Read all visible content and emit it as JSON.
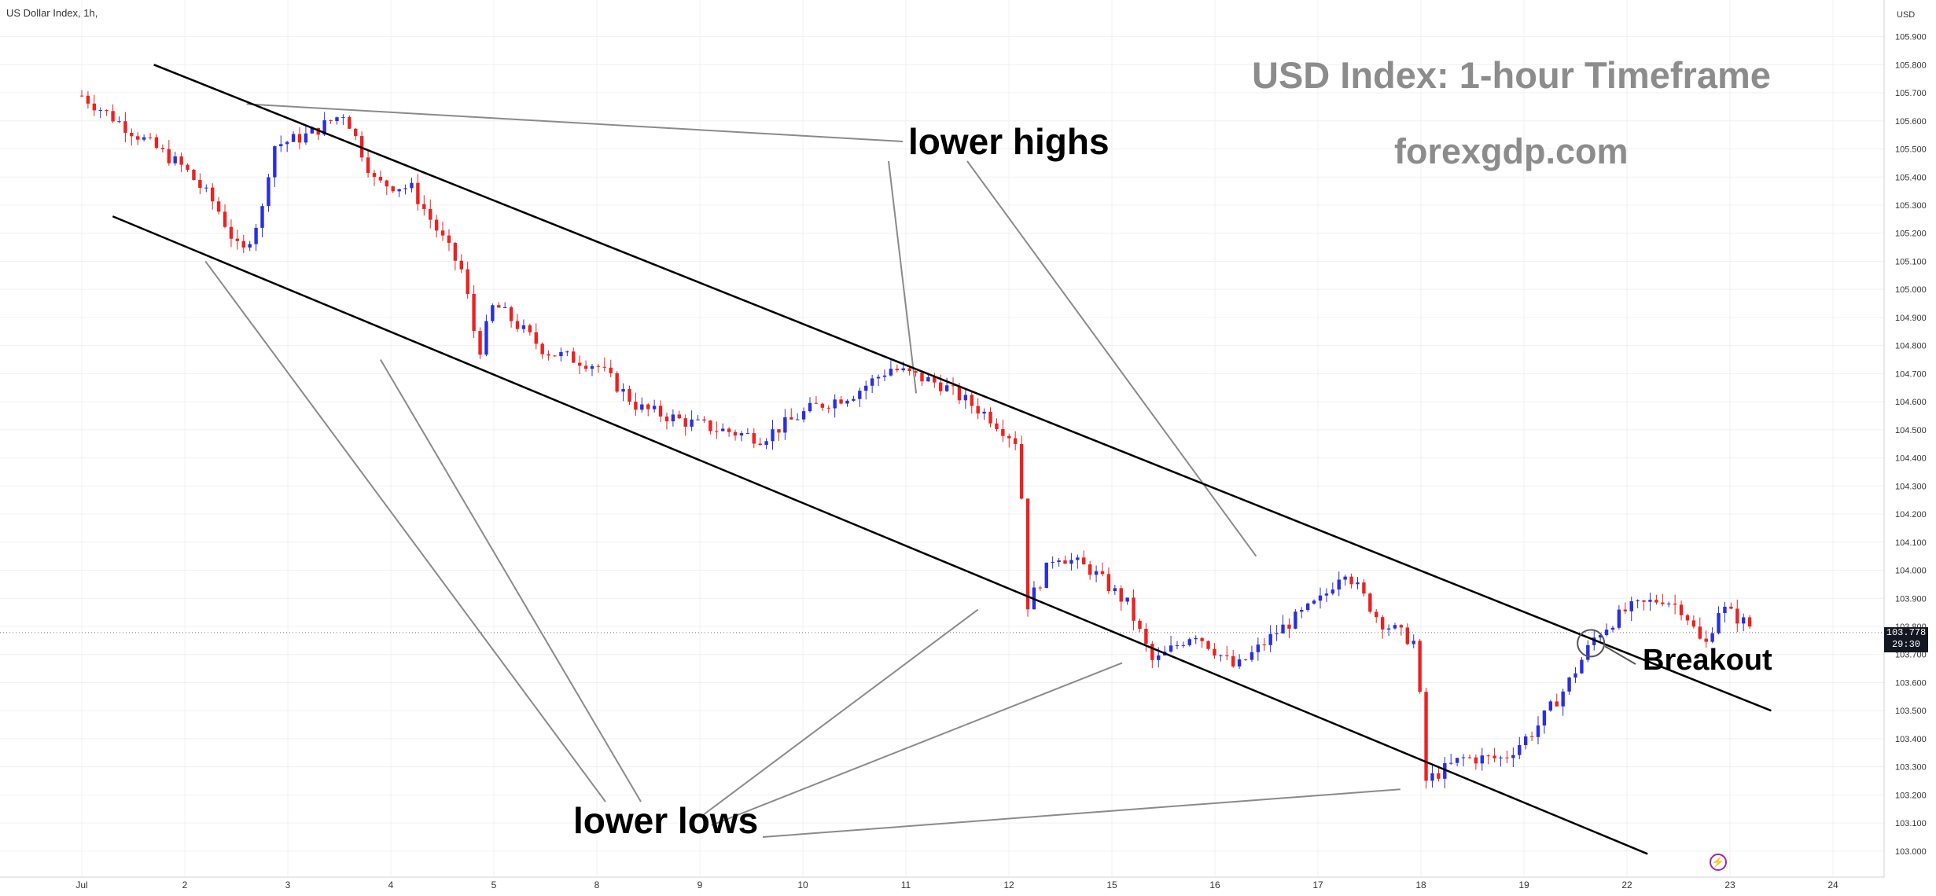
{
  "symbol": "US Dollar Index, 1h,",
  "title": "USD Index: 1-hour Timeframe",
  "site": "forexgdp.com",
  "annotations": {
    "lower_highs": "lower highs",
    "lower_lows": "lower lows",
    "breakout": "Breakout"
  },
  "current_price": {
    "value": "103.778",
    "countdown": "29:30"
  },
  "alert_icon": "lightning-icon",
  "colors": {
    "up": "#2a2ee0",
    "down": "#ee2020",
    "channel": "#000000",
    "leader": "#8a8a8a",
    "grid": "#f0f0f0"
  },
  "chart_data": {
    "type": "candlestick",
    "title": "USD Index: 1-hour Timeframe",
    "xlabel": "",
    "ylabel": "",
    "y_unit": "USD",
    "ylim": [
      102.98,
      105.98
    ],
    "x_ticks": [
      "Jul",
      "2",
      "3",
      "4",
      "5",
      "8",
      "9",
      "10",
      "11",
      "12",
      "15",
      "16",
      "17",
      "18",
      "19",
      "22",
      "23",
      "24"
    ],
    "y_ticks": [
      "105.900",
      "105.800",
      "105.700",
      "105.600",
      "105.500",
      "105.400",
      "105.300",
      "105.200",
      "105.100",
      "105.000",
      "104.900",
      "104.800",
      "104.700",
      "104.600",
      "104.500",
      "104.400",
      "104.300",
      "104.200",
      "104.100",
      "104.000",
      "103.900",
      "103.800",
      "103.700",
      "103.600",
      "103.500",
      "103.400",
      "103.300",
      "103.200",
      "103.100",
      "103.000"
    ],
    "close_path": [
      {
        "t": 0.0,
        "v": 105.69
      },
      {
        "t": 1.0,
        "v": 105.43
      },
      {
        "t": 1.3,
        "v": 105.3
      },
      {
        "t": 1.55,
        "v": 105.12
      },
      {
        "t": 1.75,
        "v": 105.28
      },
      {
        "t": 1.85,
        "v": 105.51
      },
      {
        "t": 2.2,
        "v": 105.55
      },
      {
        "t": 2.55,
        "v": 105.63
      },
      {
        "t": 2.85,
        "v": 105.38
      },
      {
        "t": 3.2,
        "v": 105.36
      },
      {
        "t": 3.7,
        "v": 105.06
      },
      {
        "t": 3.85,
        "v": 104.77
      },
      {
        "t": 4.0,
        "v": 104.95
      },
      {
        "t": 4.5,
        "v": 104.78
      },
      {
        "t": 5.0,
        "v": 104.73
      },
      {
        "t": 5.4,
        "v": 104.58
      },
      {
        "t": 5.85,
        "v": 104.53
      },
      {
        "t": 6.2,
        "v": 104.5
      },
      {
        "t": 6.6,
        "v": 104.47
      },
      {
        "t": 7.1,
        "v": 104.58
      },
      {
        "t": 7.5,
        "v": 104.63
      },
      {
        "t": 7.85,
        "v": 104.72
      },
      {
        "t": 8.35,
        "v": 104.66
      },
      {
        "t": 8.8,
        "v": 104.55
      },
      {
        "t": 9.1,
        "v": 104.45
      },
      {
        "t": 9.17,
        "v": 103.87
      },
      {
        "t": 9.45,
        "v": 104.06
      },
      {
        "t": 9.8,
        "v": 104.0
      },
      {
        "t": 10.15,
        "v": 103.88
      },
      {
        "t": 10.4,
        "v": 103.67
      },
      {
        "t": 10.8,
        "v": 103.78
      },
      {
        "t": 11.2,
        "v": 103.65
      },
      {
        "t": 11.6,
        "v": 103.78
      },
      {
        "t": 12.05,
        "v": 103.9
      },
      {
        "t": 12.25,
        "v": 104.01
      },
      {
        "t": 12.6,
        "v": 103.82
      },
      {
        "t": 12.95,
        "v": 103.74
      },
      {
        "t": 13.05,
        "v": 103.25
      },
      {
        "t": 13.4,
        "v": 103.33
      },
      {
        "t": 13.8,
        "v": 103.33
      },
      {
        "t": 14.1,
        "v": 103.43
      },
      {
        "t": 14.4,
        "v": 103.58
      },
      {
        "t": 14.7,
        "v": 103.77
      },
      {
        "t": 15.0,
        "v": 103.86
      },
      {
        "t": 15.35,
        "v": 103.9
      },
      {
        "t": 15.55,
        "v": 103.86
      },
      {
        "t": 15.75,
        "v": 103.72
      },
      {
        "t": 15.9,
        "v": 103.87
      },
      {
        "t": 16.2,
        "v": 103.8
      }
    ],
    "channel": {
      "upper_line": [
        [
          0.7,
          105.8
        ],
        [
          16.4,
          103.5
        ]
      ],
      "lower_line": [
        [
          0.3,
          105.26
        ],
        [
          15.2,
          102.99
        ]
      ]
    },
    "lower_highs": [
      {
        "t": 1.6,
        "v": 105.66
      },
      {
        "t": 8.1,
        "v": 104.63
      },
      {
        "t": 11.4,
        "v": 104.05
      }
    ],
    "lower_lows": [
      {
        "t": 1.2,
        "v": 105.1
      },
      {
        "t": 2.9,
        "v": 104.75
      },
      {
        "t": 8.7,
        "v": 103.86
      },
      {
        "t": 10.1,
        "v": 103.67
      },
      {
        "t": 12.8,
        "v": 103.22
      }
    ],
    "breakout": {
      "t": 14.65,
      "v": 103.74
    },
    "last_price": 103.778
  }
}
